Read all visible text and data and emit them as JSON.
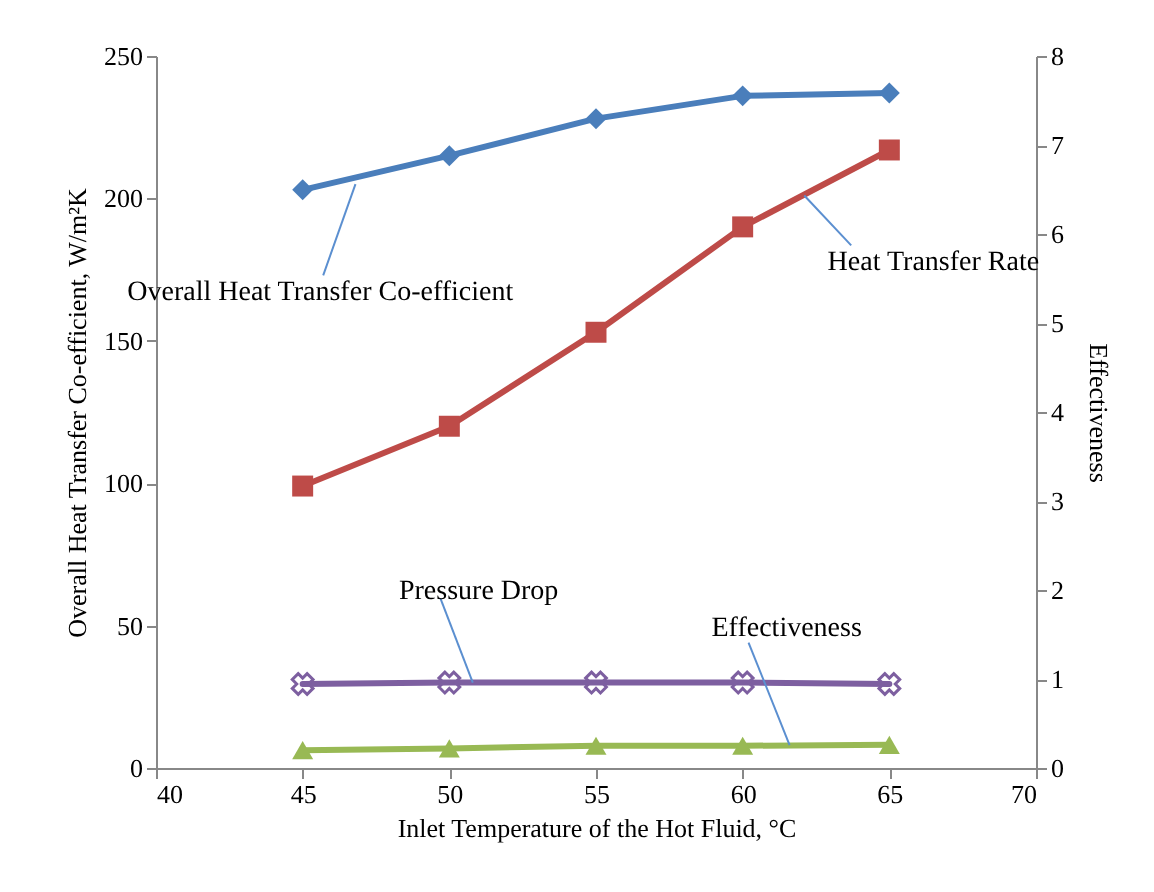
{
  "chart_data": {
    "type": "line",
    "xlabel": "Inlet Temperature of the Hot Fluid, °C",
    "ylabel": "Overall Heat Transfer Co-efficient, W/m²K",
    "y2label": "Effectiveness",
    "x": [
      45,
      50,
      55,
      60,
      65
    ],
    "xlim": [
      40,
      70
    ],
    "xticks": [
      40,
      45,
      50,
      55,
      60,
      65,
      70
    ],
    "ylim": [
      0,
      250
    ],
    "yticks": [
      0,
      50,
      100,
      150,
      200,
      250
    ],
    "y2lim": [
      0,
      8
    ],
    "y2ticks": [
      0,
      1,
      2,
      3,
      4,
      5,
      6,
      7,
      8
    ],
    "line_style": "solid",
    "series": [
      {
        "name": "Overall Heat Transfer Co-efficient",
        "color": "#4a7ebb",
        "marker": "diamond",
        "values": [
          203,
          215,
          228,
          236,
          237
        ]
      },
      {
        "name": "Heat Transfer Rate",
        "color": "#be4b48",
        "marker": "square",
        "values": [
          99,
          120,
          153,
          190,
          217
        ]
      },
      {
        "name": "Pressure Drop",
        "color": "#7d5fa0",
        "marker": "cross",
        "values": [
          29.5,
          30,
          30,
          30,
          29.5
        ]
      },
      {
        "name": "Effectiveness",
        "color": "#98b954",
        "marker": "triangle",
        "axis": "y2",
        "values": [
          0.2,
          0.22,
          0.25,
          0.25,
          0.26
        ]
      }
    ]
  }
}
